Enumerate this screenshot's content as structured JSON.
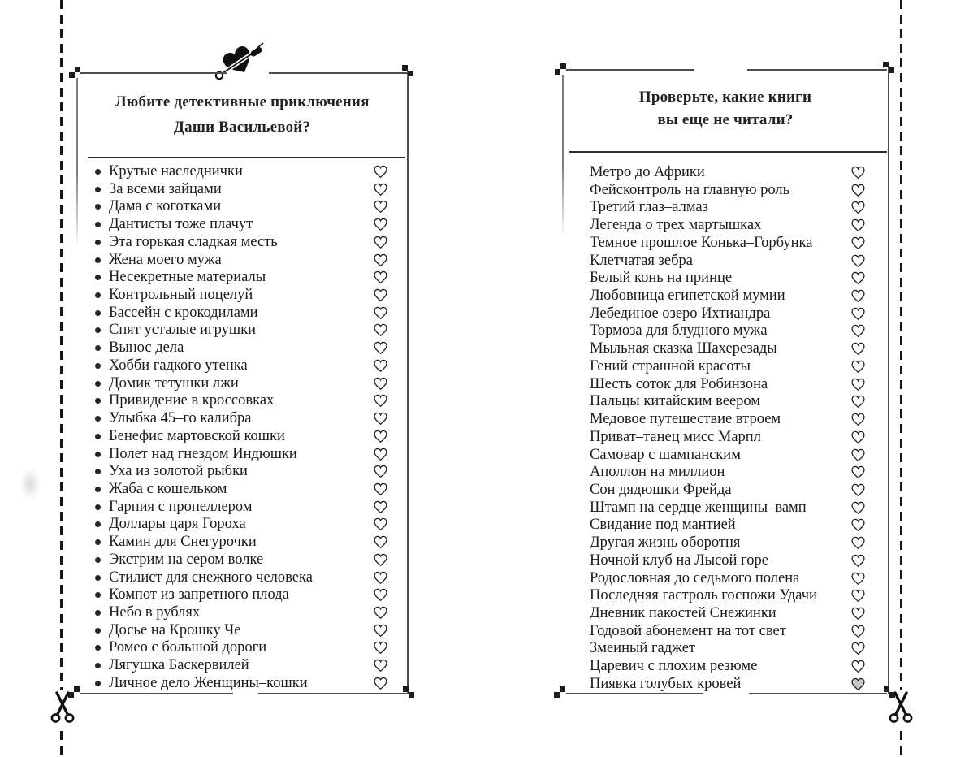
{
  "colors": {
    "ink": "#1b1b1b",
    "frame_line": "#4d4d4d",
    "heart_outline": "#1f1f1f",
    "checked_heart_fill": "#c6c6c6",
    "paper": "#ffffff"
  },
  "cut_marks": {
    "left_scissors_icon": "scissors-icon",
    "right_scissors_icon": "scissors-icon"
  },
  "left_panel": {
    "ornament_icon": "heart-with-safety-pin-icon",
    "title_lines": [
      "Любите детективные приключения",
      "Даши Васильевой?"
    ],
    "bulleted": true,
    "books": [
      {
        "title": "Крутые наследнички",
        "checked": false
      },
      {
        "title": "За всеми зайцами",
        "checked": false
      },
      {
        "title": "Дама с коготками",
        "checked": false
      },
      {
        "title": "Дантисты тоже плачут",
        "checked": false
      },
      {
        "title": "Эта горькая сладкая месть",
        "checked": false
      },
      {
        "title": "Жена моего мужа",
        "checked": false
      },
      {
        "title": "Несекретные материалы",
        "checked": false
      },
      {
        "title": "Контрольный поцелуй",
        "checked": false
      },
      {
        "title": "Бассейн с крокодилами",
        "checked": false
      },
      {
        "title": "Спят усталые игрушки",
        "checked": false
      },
      {
        "title": "Вынос дела",
        "checked": false
      },
      {
        "title": "Хобби гадкого утенка",
        "checked": false
      },
      {
        "title": "Домик тетушки лжи",
        "checked": false
      },
      {
        "title": "Привидение в кроссовках",
        "checked": false
      },
      {
        "title": "Улыбка 45–го калибра",
        "checked": false
      },
      {
        "title": "Бенефис мартовской кошки",
        "checked": false
      },
      {
        "title": "Полет над гнездом Индюшки",
        "checked": false
      },
      {
        "title": "Уха из золотой рыбки",
        "checked": false
      },
      {
        "title": "Жаба с кошельком",
        "checked": false
      },
      {
        "title": "Гарпия с пропеллером",
        "checked": false
      },
      {
        "title": "Доллары царя Гороха",
        "checked": false
      },
      {
        "title": "Камин для Снегурочки",
        "checked": false
      },
      {
        "title": "Экстрим на сером волке",
        "checked": false
      },
      {
        "title": "Стилист для снежного человека",
        "checked": false
      },
      {
        "title": "Компот из запретного плода",
        "checked": false
      },
      {
        "title": "Небо в рублях",
        "checked": false
      },
      {
        "title": "Досье на Крошку Че",
        "checked": false
      },
      {
        "title": "Ромео с большой дороги",
        "checked": false
      },
      {
        "title": "Лягушка Баскервилей",
        "checked": false
      },
      {
        "title": "Личное дело Женщины–кошки",
        "checked": false
      }
    ]
  },
  "right_panel": {
    "title_lines": [
      "Проверьте, какие книги",
      "вы еще не читали?"
    ],
    "bulleted": false,
    "books": [
      {
        "title": "Метро до Африки",
        "checked": false
      },
      {
        "title": "Фейсконтроль на главную роль",
        "checked": false
      },
      {
        "title": "Третий глаз–алмаз",
        "checked": false
      },
      {
        "title": "Легенда о трех мартышках",
        "checked": false
      },
      {
        "title": "Темное прошлое Конька–Горбунка",
        "checked": false
      },
      {
        "title": "Клетчатая зебра",
        "checked": false
      },
      {
        "title": "Белый конь на принце",
        "checked": false
      },
      {
        "title": "Любовница египетской мумии",
        "checked": false
      },
      {
        "title": "Лебединое озеро Ихтиандра",
        "checked": false
      },
      {
        "title": "Тормоза для блудного мужа",
        "checked": false
      },
      {
        "title": "Мыльная сказка Шахерезады",
        "checked": false
      },
      {
        "title": "Гений страшной красоты",
        "checked": false
      },
      {
        "title": "Шесть соток для Робинзона",
        "checked": false
      },
      {
        "title": "Пальцы китайским веером",
        "checked": false
      },
      {
        "title": "Медовое путешествие втроем",
        "checked": false
      },
      {
        "title": "Приват–танец мисс Марпл",
        "checked": false
      },
      {
        "title": "Самовар с шампанским",
        "checked": false
      },
      {
        "title": "Аполлон на миллион",
        "checked": false
      },
      {
        "title": "Сон дядюшки Фрейда",
        "checked": false
      },
      {
        "title": "Штамп на сердце женщины–вамп",
        "checked": false
      },
      {
        "title": "Свидание под мантией",
        "checked": false
      },
      {
        "title": "Другая жизнь оборотня",
        "checked": false
      },
      {
        "title": "Ночной клуб на Лысой горе",
        "checked": false
      },
      {
        "title": "Родословная до седьмого полена",
        "checked": false
      },
      {
        "title": "Последняя гастроль госпожи Удачи",
        "checked": false
      },
      {
        "title": "Дневник пакостей Снежинки",
        "checked": false
      },
      {
        "title": "Годовой абонемент на тот свет",
        "checked": false
      },
      {
        "title": "Змеиный гаджет",
        "checked": false
      },
      {
        "title": "Царевич с плохим резюме",
        "checked": false
      },
      {
        "title": "Пиявка голубых кровей",
        "checked": true
      }
    ]
  }
}
